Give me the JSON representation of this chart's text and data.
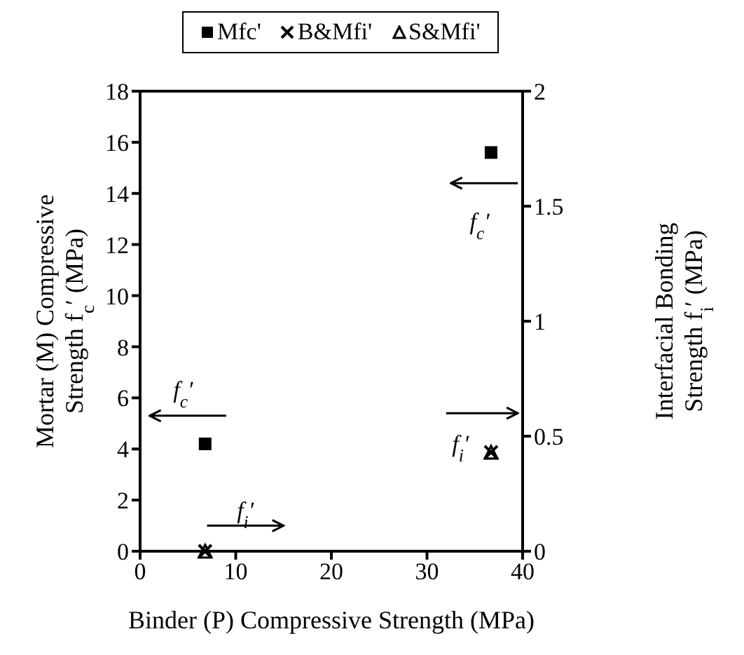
{
  "chart_data": {
    "type": "scatter",
    "xlabel": "Binder (P) Compressive Strength (MPa)",
    "ylabel": "Mortar (M) Compressive Strength f$_{c}$′ (MPa)",
    "y2label": "Interfacial Bonding Strength f$_{i}$′ (MPa)",
    "xlim": [
      0,
      40
    ],
    "xticks": [
      0,
      10,
      20,
      30,
      40
    ],
    "ylim": [
      0,
      18
    ],
    "yticks": [
      0,
      2,
      4,
      6,
      8,
      10,
      12,
      14,
      16,
      18
    ],
    "y2lim": [
      0,
      2
    ],
    "y2ticks": [
      0,
      0.5,
      1,
      1.5,
      2
    ],
    "legend": "top",
    "x": [
      6.8,
      36.7
    ],
    "series": [
      {
        "name": "Mfc'",
        "color": "#000000",
        "marker": "square",
        "values": [
          4.2,
          15.6
        ]
      },
      {
        "name": "B&Mfi'",
        "color": "#000000",
        "marker": "cross",
        "axis": "y2",
        "values": [
          0.0,
          0.43
        ]
      },
      {
        "name": "S&Mfi'",
        "color": "#000000",
        "marker": "triangle",
        "axis": "y2",
        "values": [
          0.0,
          0.43
        ]
      }
    ],
    "annotations": [
      "f$_{c}$′",
      "f$_{i}$′",
      "f$_{c}$′",
      "f$_{i}$′"
    ]
  }
}
